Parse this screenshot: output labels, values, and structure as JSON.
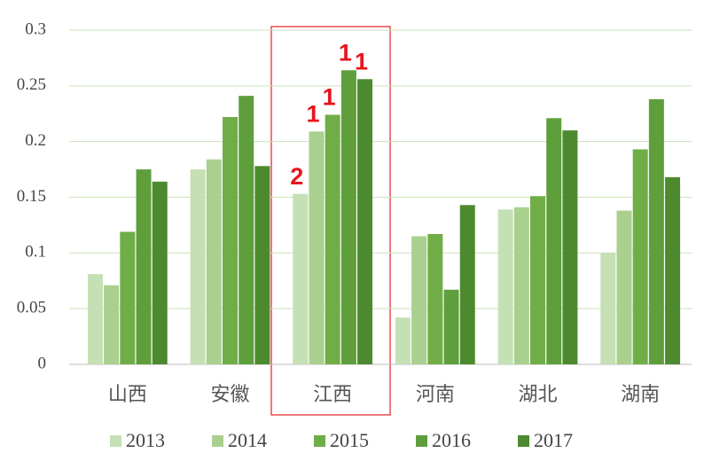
{
  "chart_data": {
    "type": "bar",
    "categories": [
      "山西",
      "安徽",
      "江西",
      "河南",
      "湖北",
      "湖南"
    ],
    "series": [
      {
        "name": "2013",
        "color": "#c5e0b4",
        "values": [
          0.081,
          0.175,
          0.153,
          0.042,
          0.139,
          0.1
        ]
      },
      {
        "name": "2014",
        "color": "#a9d08e",
        "values": [
          0.071,
          0.184,
          0.209,
          0.115,
          0.141,
          0.138
        ]
      },
      {
        "name": "2015",
        "color": "#70ad47",
        "values": [
          0.119,
          0.222,
          0.224,
          0.117,
          0.151,
          0.193
        ]
      },
      {
        "name": "2016",
        "color": "#5e9f3c",
        "values": [
          0.175,
          0.241,
          0.264,
          0.067,
          0.221,
          0.238
        ]
      },
      {
        "name": "2017",
        "color": "#4d8a2f",
        "values": [
          0.164,
          0.178,
          0.256,
          0.143,
          0.21,
          0.168
        ]
      }
    ],
    "annotations": [
      "2",
      "1",
      "1",
      "1",
      "1"
    ],
    "ylim": [
      0,
      0.3
    ],
    "yticks": [
      0,
      0.05,
      0.1,
      0.15,
      0.2,
      0.25,
      0.3
    ],
    "grid": true,
    "legend": "bottom"
  }
}
